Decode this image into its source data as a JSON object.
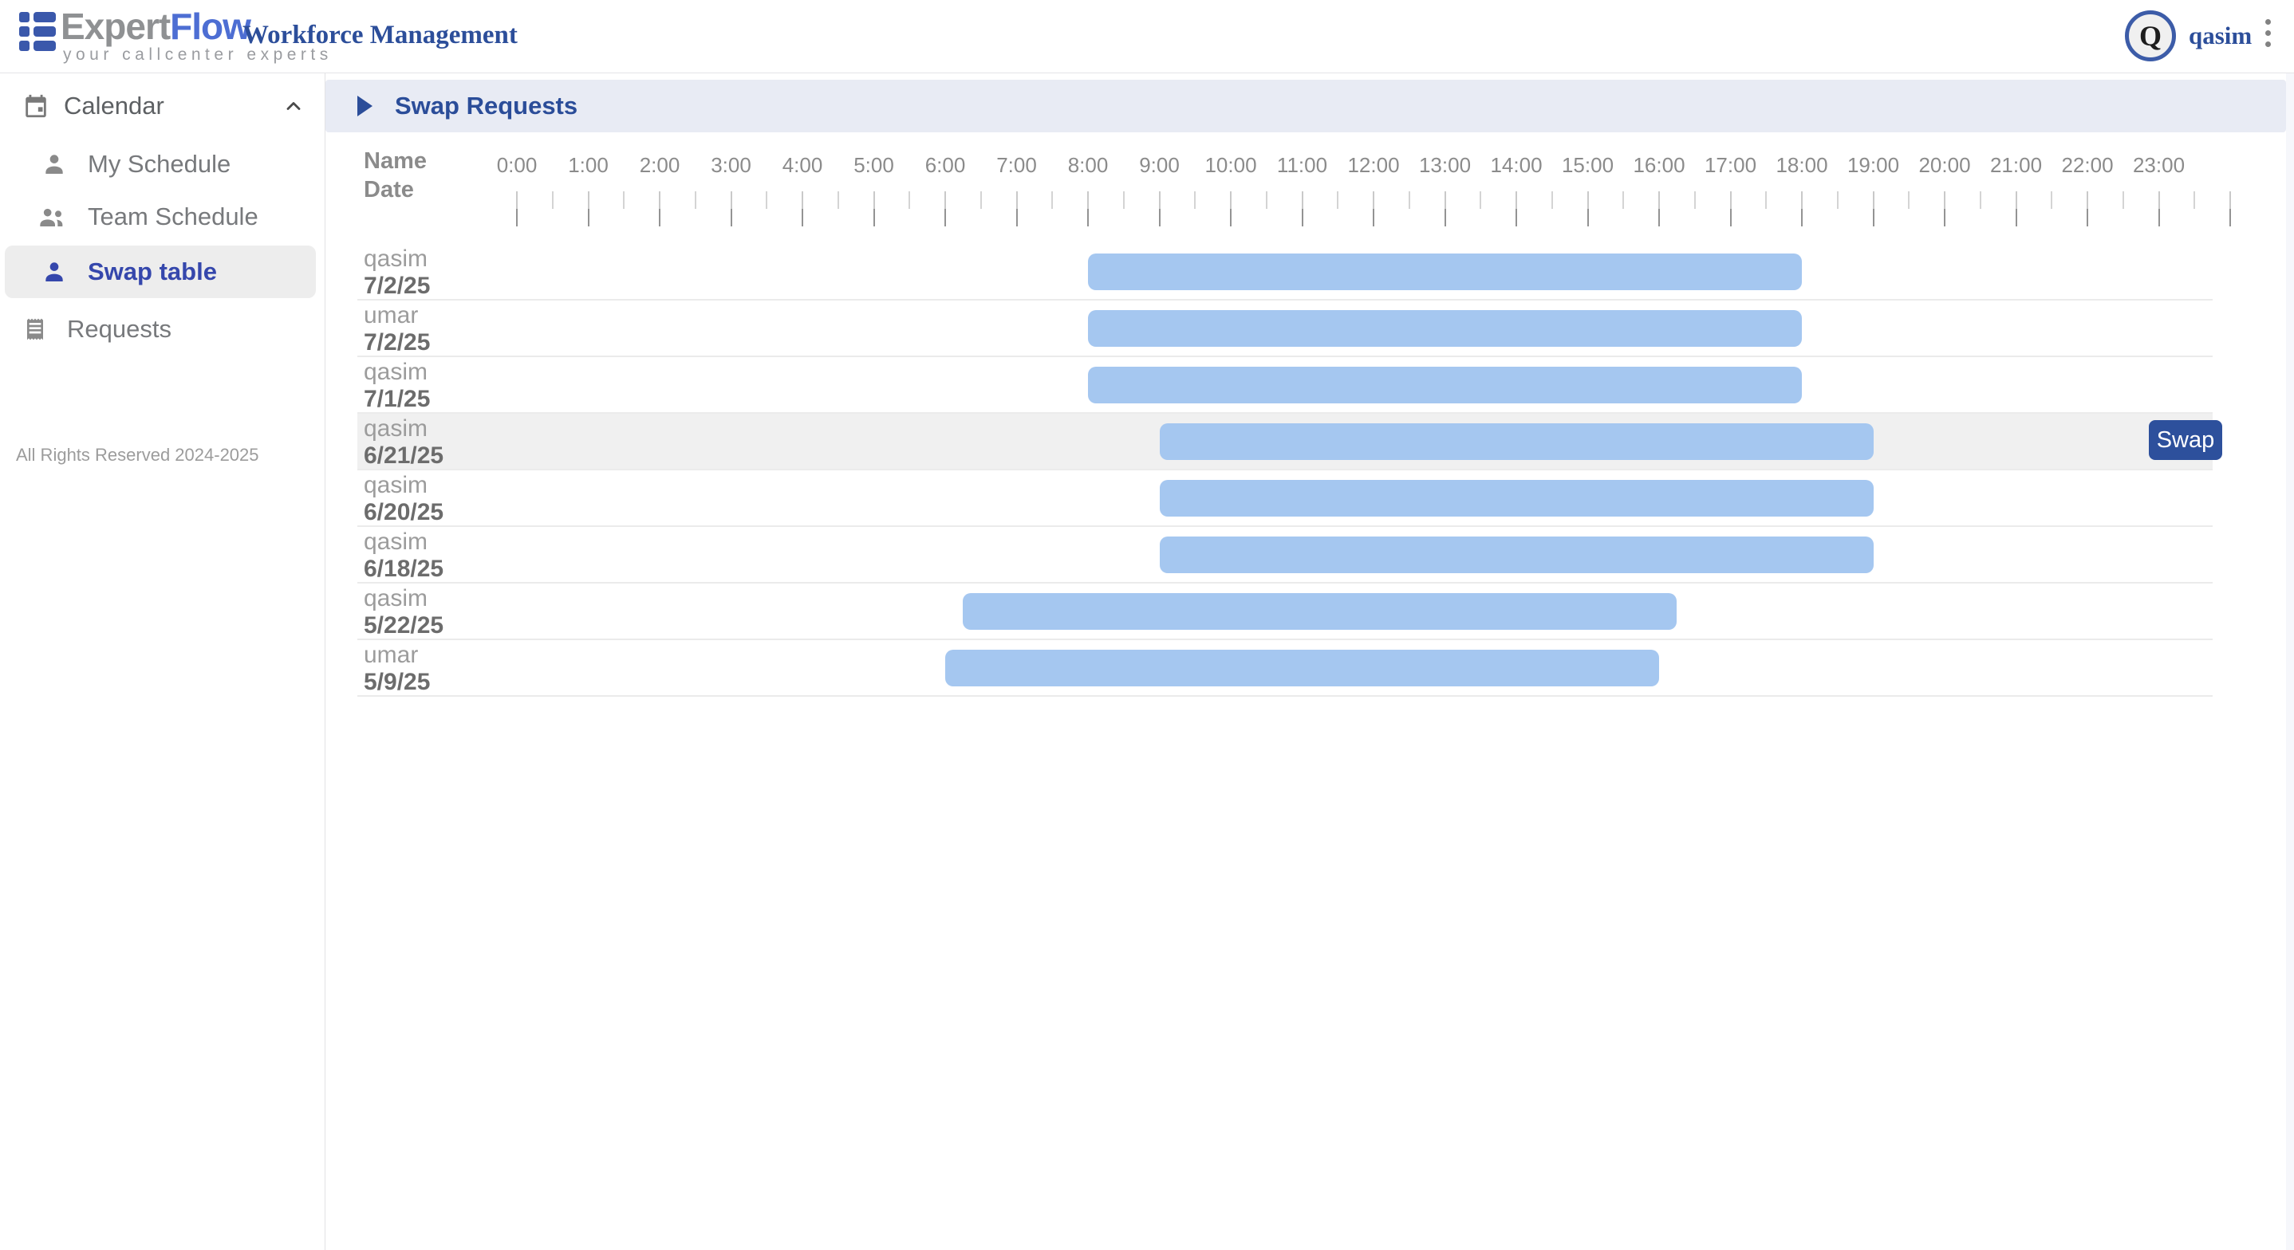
{
  "header": {
    "logo": {
      "brand_primary": "Expert",
      "brand_secondary": "Flow",
      "tagline": "your callcenter experts"
    },
    "app_title": "Workforce Management",
    "user": {
      "initial": "Q",
      "name": "qasim"
    }
  },
  "sidebar": {
    "section": {
      "label": "Calendar"
    },
    "items": [
      {
        "label": "My Schedule"
      },
      {
        "label": "Team Schedule"
      },
      {
        "label": "Swap table"
      }
    ],
    "requests_label": "Requests",
    "footer": "All Rights Reserved 2024-2025"
  },
  "main": {
    "panel_title": "Swap Requests",
    "table": {
      "header": {
        "col1_line1": "Name",
        "col1_line2": "Date"
      },
      "time_labels": [
        "0:00",
        "1:00",
        "2:00",
        "3:00",
        "4:00",
        "5:00",
        "6:00",
        "7:00",
        "8:00",
        "9:00",
        "10:00",
        "11:00",
        "12:00",
        "13:00",
        "14:00",
        "15:00",
        "16:00",
        "17:00",
        "18:00",
        "19:00",
        "20:00",
        "21:00",
        "22:00",
        "23:00"
      ],
      "rows": [
        {
          "name": "qasim",
          "date": "7/2/25",
          "shift_start": 8,
          "shift_end": 18,
          "highlighted": false
        },
        {
          "name": "umar",
          "date": "7/2/25",
          "shift_start": 8,
          "shift_end": 18,
          "highlighted": false
        },
        {
          "name": "qasim",
          "date": "7/1/25",
          "shift_start": 8,
          "shift_end": 18,
          "highlighted": false
        },
        {
          "name": "qasim",
          "date": "6/21/25",
          "shift_start": 9,
          "shift_end": 19,
          "highlighted": true,
          "action_label": "Swap"
        },
        {
          "name": "qasim",
          "date": "6/20/25",
          "shift_start": 9,
          "shift_end": 19,
          "highlighted": false
        },
        {
          "name": "qasim",
          "date": "6/18/25",
          "shift_start": 9,
          "shift_end": 19,
          "highlighted": false
        },
        {
          "name": "qasim",
          "date": "5/22/25",
          "shift_start": 6.25,
          "shift_end": 16.25,
          "highlighted": false
        },
        {
          "name": "umar",
          "date": "5/9/25",
          "shift_start": 6,
          "shift_end": 16,
          "highlighted": false
        }
      ]
    }
  },
  "colors": {
    "accent_blue": "#2b4d99",
    "button_blue": "#2d509c",
    "bar_blue": "#a5c7f0",
    "selected_indigo": "#3547ac",
    "banner_bg": "#e8ebf4",
    "highlight_bg": "#f0f0f0"
  }
}
